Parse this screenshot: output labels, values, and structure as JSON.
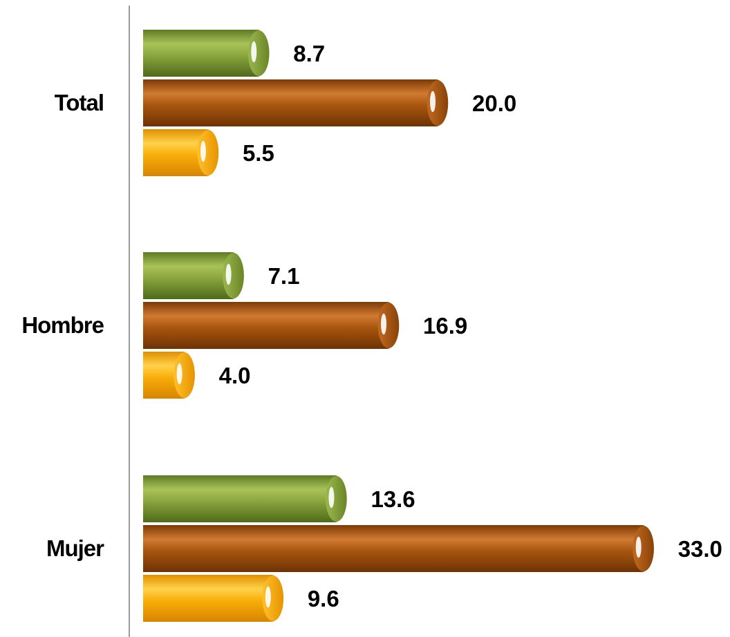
{
  "chart_data": {
    "type": "bar",
    "orientation": "horizontal",
    "categories": [
      "Total",
      "Hombre",
      "Mujer"
    ],
    "series": [
      {
        "values": [
          8.7,
          7.1,
          13.6
        ],
        "color": "#7f9b36"
      },
      {
        "values": [
          20.0,
          16.9,
          33.0
        ],
        "color": "#a4500f"
      },
      {
        "values": [
          5.5,
          4.0,
          9.6
        ],
        "color": "#f5a600"
      }
    ],
    "value_labels": [
      [
        "8.7",
        "7.1",
        "13.6"
      ],
      [
        "20.0",
        "16.9",
        "33.0"
      ],
      [
        "5.5",
        "4.0",
        "9.6"
      ]
    ],
    "xlim": [
      0,
      33
    ],
    "grid": false,
    "legend": "none"
  }
}
